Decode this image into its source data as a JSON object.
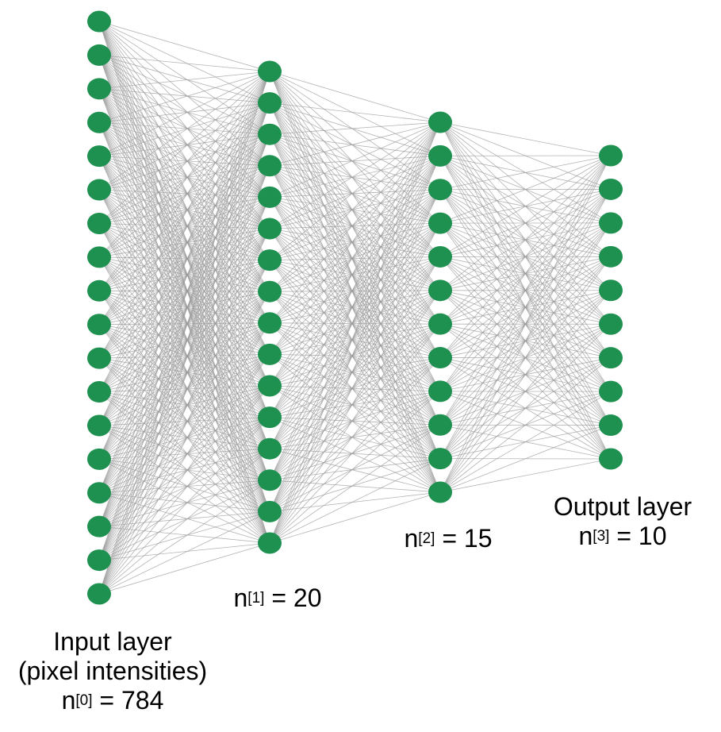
{
  "diagram": {
    "node_color": "#1e9150",
    "edge_color": "#9a9a9a",
    "layers": [
      {
        "id": "input",
        "visible_nodes": 18
      },
      {
        "id": "hidden1",
        "visible_nodes": 16
      },
      {
        "id": "hidden2",
        "visible_nodes": 12
      },
      {
        "id": "output",
        "visible_nodes": 10
      }
    ]
  },
  "labels": {
    "input": {
      "line1": "Input layer",
      "line2": "(pixel intensities)",
      "base": "n",
      "sup": "[0]",
      "rest": " = 784"
    },
    "hidden1": {
      "base": "n",
      "sup": "[1]",
      "rest": " = 20"
    },
    "hidden2": {
      "base": "n",
      "sup": "[2]",
      "rest": " = 15"
    },
    "output": {
      "line1": "Output layer",
      "base": "n",
      "sup": "[3]",
      "rest": " = 10"
    }
  }
}
